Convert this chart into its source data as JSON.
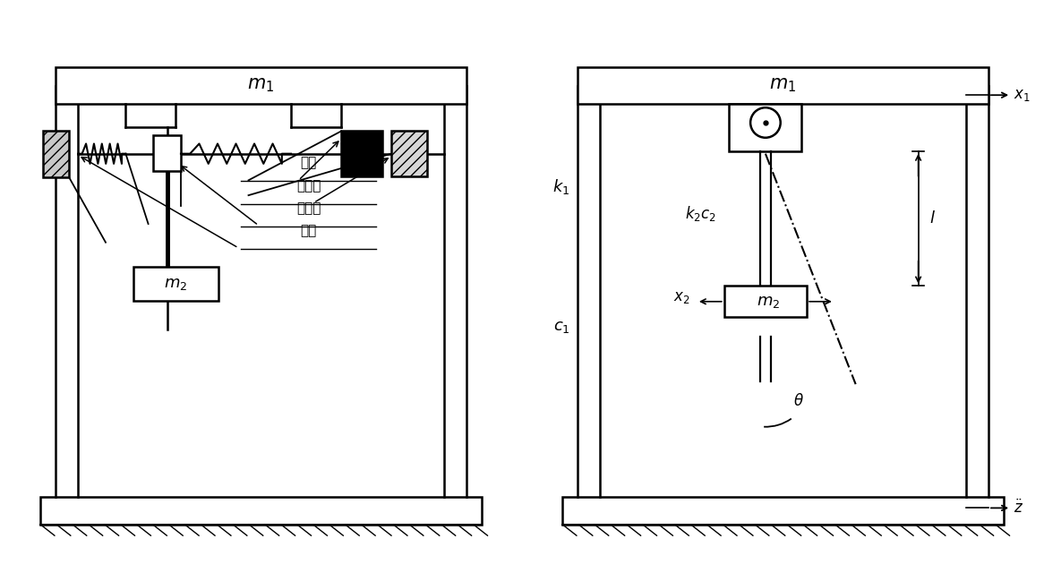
{
  "bg_color": "#ffffff",
  "fig_width": 11.66,
  "fig_height": 6.4,
  "labels": {
    "m1": "$m_1$",
    "m2": "$m_2$",
    "k1": "$k_1$",
    "c1": "$c_1$",
    "k2c2": "$k_2 c_2$",
    "x1": "$x_1$",
    "x2": "$x_2$",
    "l": "$l$",
    "theta": "$\\theta$",
    "motor": "电机",
    "encoder": "编码器",
    "coupler": "联接器",
    "bearing": "轴承"
  }
}
